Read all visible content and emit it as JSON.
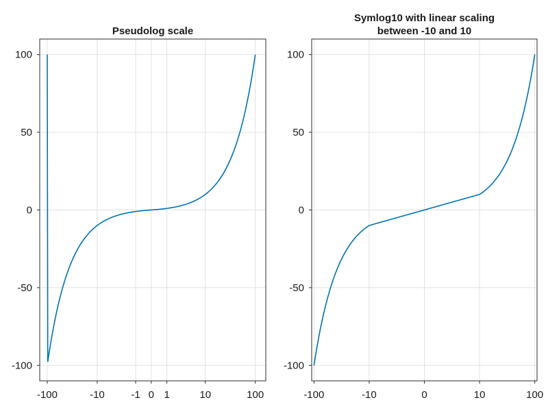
{
  "chart_data": [
    {
      "type": "line",
      "title_lines": [
        "Pseudolog scale"
      ],
      "xscale": "pseudolog10",
      "xlim": [
        -140,
        160
      ],
      "ylim": [
        -110,
        110
      ],
      "xticks": [
        -100,
        -10,
        -1,
        0,
        1,
        10,
        100
      ],
      "xtick_labels": [
        "-100",
        "-10",
        "-1",
        "0",
        "1",
        "10",
        "100"
      ],
      "yticks": [
        -100,
        -50,
        0,
        50,
        100
      ],
      "ytick_labels": [
        "-100",
        "-50",
        "0",
        "50",
        "100"
      ],
      "grid": true,
      "series": [
        {
          "color": "#0072b2",
          "x": [
            -100,
            -80,
            -60,
            -40,
            -30,
            -20,
            -15,
            -10,
            -7,
            -5,
            -3,
            -2,
            -1,
            -0.5,
            0,
            0.5,
            1,
            2,
            3,
            5,
            7,
            10,
            15,
            20,
            30,
            40,
            60,
            80,
            100
          ],
          "y": [
            -100,
            -80,
            -60,
            -40,
            -30,
            -20,
            -15,
            -10,
            -7,
            -5,
            -3,
            -2,
            -1,
            -0.5,
            0,
            0.5,
            1,
            2,
            3,
            5,
            7,
            10,
            15,
            20,
            30,
            40,
            60,
            80,
            100
          ]
        }
      ]
    },
    {
      "type": "line",
      "title_lines": [
        "Symlog10 with linear scaling",
        "between -10 and 10"
      ],
      "xscale": "symlog10 (linear between -10 and 10)",
      "xlim": [
        -110,
        110
      ],
      "ylim": [
        -110,
        110
      ],
      "xticks": [
        -100,
        -10,
        0,
        10,
        100
      ],
      "xtick_labels": [
        "-100",
        "-10",
        "0",
        "10",
        "100"
      ],
      "yticks": [
        -100,
        -50,
        0,
        50,
        100
      ],
      "ytick_labels": [
        "-100",
        "-50",
        "0",
        "50",
        "100"
      ],
      "grid": true,
      "series": [
        {
          "color": "#0072b2",
          "x": [
            -100,
            -80,
            -60,
            -40,
            -30,
            -20,
            -15,
            -10,
            -5,
            0,
            5,
            10,
            15,
            20,
            30,
            40,
            60,
            80,
            100
          ],
          "y": [
            -100,
            -80,
            -60,
            -40,
            -30,
            -20,
            -15,
            -10,
            -5,
            0,
            5,
            10,
            15,
            20,
            30,
            40,
            60,
            80,
            100
          ]
        }
      ]
    }
  ]
}
